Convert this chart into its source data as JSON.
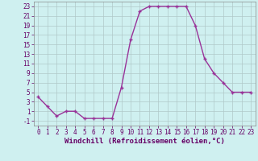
{
  "x": [
    0,
    1,
    2,
    3,
    4,
    5,
    6,
    7,
    8,
    9,
    10,
    11,
    12,
    13,
    14,
    15,
    16,
    17,
    18,
    19,
    20,
    21,
    22,
    23
  ],
  "y": [
    4,
    2,
    0,
    1,
    1,
    -0.5,
    -0.5,
    -0.5,
    -0.5,
    6,
    16,
    22,
    23,
    23,
    23,
    23,
    23,
    19,
    12,
    9,
    7,
    5,
    5,
    5
  ],
  "line_color": "#993399",
  "marker": "+",
  "bg_color": "#cff0f0",
  "grid_color": "#b0c8c8",
  "xlabel": "Windchill (Refroidissement éolien,°C)",
  "yticks": [
    -1,
    1,
    3,
    5,
    7,
    9,
    11,
    13,
    15,
    17,
    19,
    21,
    23
  ],
  "xticks": [
    0,
    1,
    2,
    3,
    4,
    5,
    6,
    7,
    8,
    9,
    10,
    11,
    12,
    13,
    14,
    15,
    16,
    17,
    18,
    19,
    20,
    21,
    22,
    23
  ],
  "ylim": [
    -2,
    24
  ],
  "xlim": [
    -0.5,
    23.5
  ],
  "xlabel_fontsize": 6.5,
  "tick_fontsize": 5.5,
  "linewidth": 1.0,
  "markersize": 3.5,
  "markeredgewidth": 1.0
}
